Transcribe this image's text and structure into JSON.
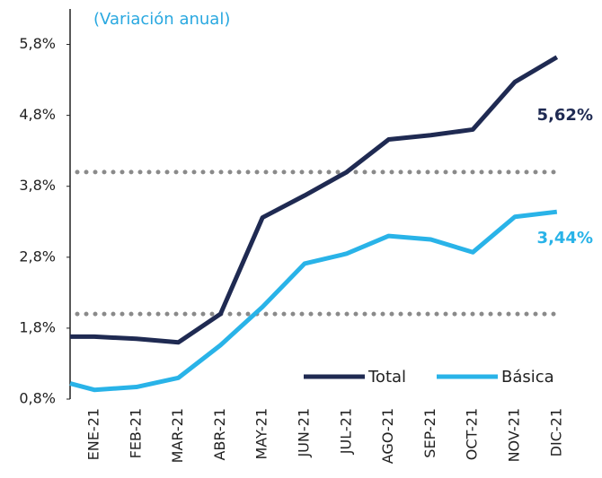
{
  "chart_data": {
    "type": "line",
    "subtitle": "(Variación anual)",
    "categories": [
      null,
      "ENE-21",
      "FEB-21",
      "MAR-21",
      "ABR-21",
      "MAY-21",
      "JUN-21",
      "JUL-21",
      "AGO-21",
      "SEP-21",
      "OCT-21",
      "NOV-21",
      "DIC-21"
    ],
    "series": [
      {
        "name": "Total",
        "color": "#1f2a52",
        "values": [
          1.68,
          1.68,
          1.65,
          1.6,
          2.0,
          3.36,
          3.67,
          4.0,
          4.46,
          4.52,
          4.6,
          5.27,
          5.62
        ],
        "value_labels": [
          null,
          null,
          null,
          null,
          null,
          null,
          null,
          null,
          null,
          null,
          null,
          null,
          "5,62%"
        ]
      },
      {
        "name": "Básica",
        "color": "#29b3e8",
        "values": [
          1.02,
          0.93,
          0.97,
          1.1,
          1.56,
          2.1,
          2.71,
          2.85,
          3.1,
          3.05,
          2.87,
          3.37,
          3.44
        ],
        "value_labels": [
          null,
          null,
          null,
          null,
          null,
          null,
          null,
          null,
          null,
          null,
          null,
          null,
          "3,44%"
        ]
      }
    ],
    "reference_lines": [
      2.0,
      4.0
    ],
    "ylim": [
      0.8,
      6.3
    ],
    "yticks": [
      {
        "value": 0.8,
        "label": "0,8%"
      },
      {
        "value": 1.8,
        "label": "1,8%"
      },
      {
        "value": 2.8,
        "label": "2,8%"
      },
      {
        "value": 3.8,
        "label": "3,8%"
      },
      {
        "value": 4.8,
        "label": "4,8%"
      },
      {
        "value": 5.8,
        "label": "5,8%"
      }
    ],
    "legend": "lower right"
  }
}
